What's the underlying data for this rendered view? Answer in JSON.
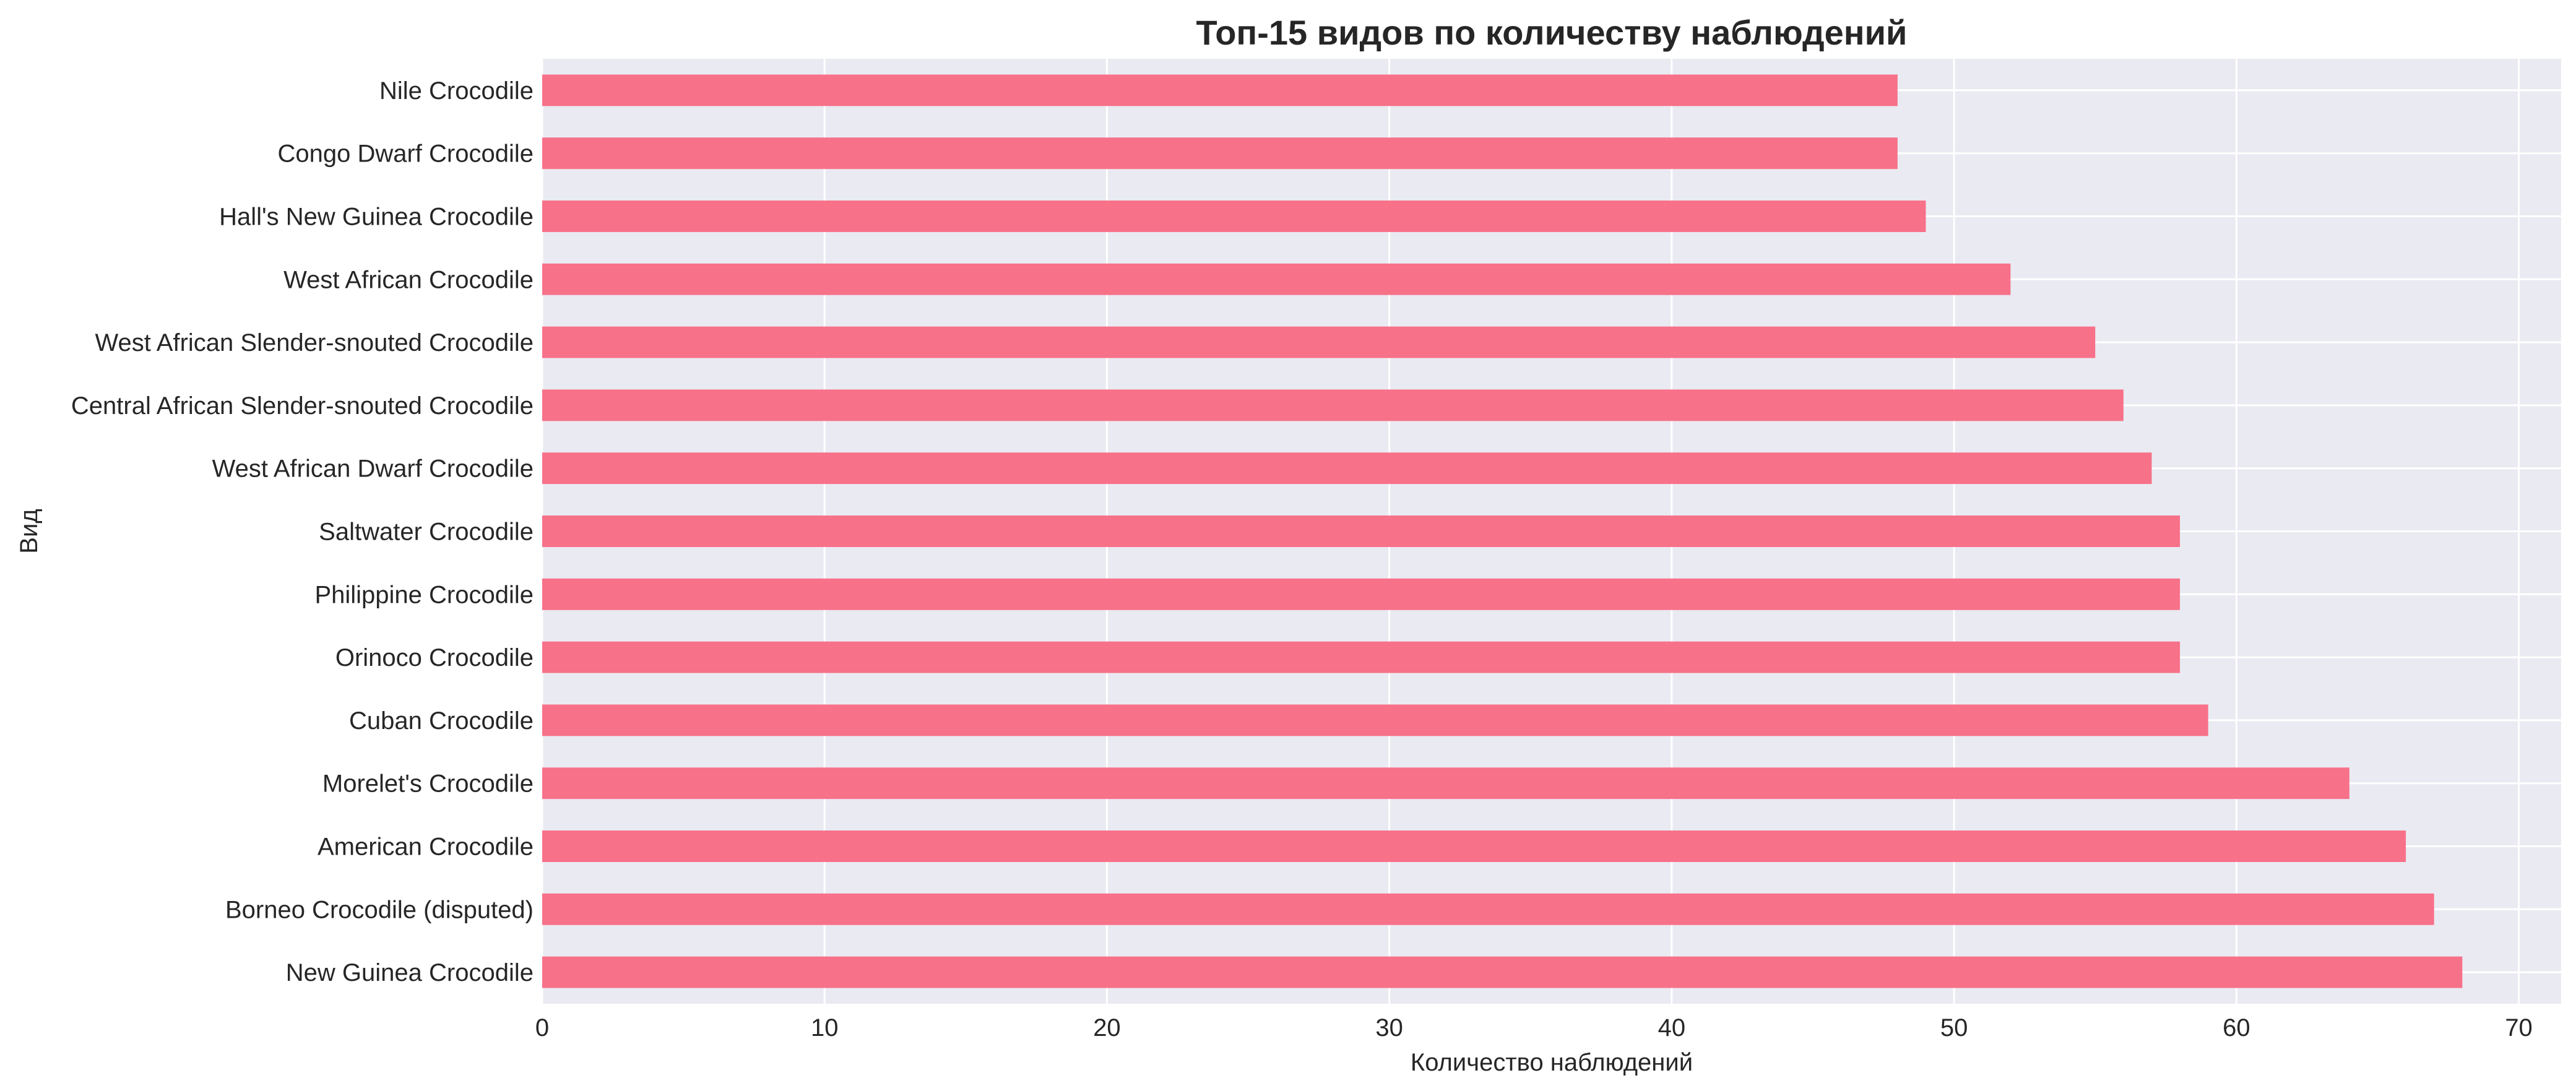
{
  "chart_data": {
    "type": "bar",
    "orientation": "horizontal",
    "title": "Топ-15 видов по количеству наблюдений",
    "xlabel": "Количество наблюдений",
    "ylabel": "Вид",
    "xlim": [
      0,
      71.5
    ],
    "xticks": [
      0,
      10,
      20,
      30,
      40,
      50,
      60,
      70
    ],
    "grid": true,
    "bar_color": "#f77189",
    "background_color": "#eaeaf2",
    "grid_color": "#ffffff",
    "categories": [
      "Nile Crocodile",
      "Congo Dwarf Crocodile",
      "Hall's New Guinea Crocodile",
      "West African Crocodile",
      "West African Slender-snouted Crocodile",
      "Central African Slender-snouted Crocodile",
      "West African Dwarf Crocodile",
      "Saltwater Crocodile",
      "Philippine Crocodile",
      "Orinoco Crocodile",
      "Cuban Crocodile",
      "Morelet's Crocodile",
      "American Crocodile",
      "Borneo Crocodile (disputed)",
      "New Guinea Crocodile"
    ],
    "values": [
      48,
      48,
      49,
      52,
      55,
      56,
      57,
      58,
      58,
      58,
      59,
      64,
      66,
      67,
      68
    ]
  }
}
